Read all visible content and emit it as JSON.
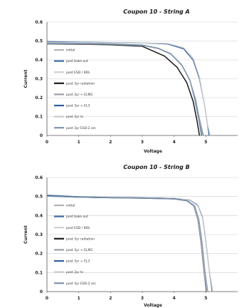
{
  "chart_data": [
    {
      "type": "line",
      "title": "Coupon 10 - String A",
      "xlabel": "Voltage",
      "ylabel": "Current",
      "xlim": [
        0,
        6
      ],
      "ylim": [
        0,
        0.6
      ],
      "xticks": [
        "0",
        "1",
        "2",
        "3",
        "4",
        "5"
      ],
      "yticks": [
        "0",
        "0.1",
        "0.2",
        "0.3",
        "0.4",
        "0.5",
        "0.6"
      ],
      "grid": true,
      "legend_position": "left",
      "series": [
        {
          "name": "initial",
          "color": "#b3b3b3",
          "x": [
            0,
            1,
            2,
            3,
            3.8,
            4.3,
            4.6,
            4.8,
            4.95,
            5.05,
            5.12
          ],
          "y": [
            0.495,
            0.493,
            0.492,
            0.49,
            0.485,
            0.46,
            0.4,
            0.3,
            0.17,
            0.06,
            0
          ]
        },
        {
          "name": "post bake out",
          "color": "#3e6fa8",
          "x": [
            0,
            1,
            2,
            3,
            3.8,
            4.3,
            4.6,
            4.8,
            4.95,
            5.05,
            5.1
          ],
          "y": [
            0.497,
            0.494,
            0.492,
            0.49,
            0.484,
            0.458,
            0.398,
            0.3,
            0.17,
            0.06,
            0
          ]
        },
        {
          "name": "post ESD / BOL",
          "color": "#d0d0d0",
          "x": [
            0,
            1,
            2,
            3,
            3.8,
            4.3,
            4.6,
            4.8,
            4.95,
            5.05,
            5.14
          ],
          "y": [
            0.493,
            0.492,
            0.491,
            0.49,
            0.487,
            0.465,
            0.41,
            0.31,
            0.17,
            0.06,
            0
          ]
        },
        {
          "name": "post 3yr radiation",
          "color": "#1a1a1a",
          "x": [
            0,
            1,
            2,
            3,
            3.3,
            3.7,
            4.1,
            4.4,
            4.6,
            4.72,
            4.8
          ],
          "y": [
            0.485,
            0.483,
            0.48,
            0.472,
            0.45,
            0.42,
            0.36,
            0.28,
            0.18,
            0.08,
            0
          ]
        },
        {
          "name": "post 3yr + ELM2",
          "color": "#9aa0a6",
          "x": [
            0,
            1,
            2,
            3,
            3.5,
            3.9,
            4.25,
            4.5,
            4.65,
            4.78,
            4.86
          ],
          "y": [
            0.487,
            0.486,
            0.484,
            0.477,
            0.46,
            0.43,
            0.37,
            0.29,
            0.19,
            0.08,
            0
          ]
        },
        {
          "name": "post 3yr + EL3",
          "color": "#2c5f99",
          "x": [
            0,
            1,
            2,
            3,
            3.5,
            3.9,
            4.25,
            4.5,
            4.66,
            4.79,
            4.88
          ],
          "y": [
            0.488,
            0.487,
            0.485,
            0.478,
            0.462,
            0.432,
            0.372,
            0.292,
            0.19,
            0.08,
            0
          ]
        },
        {
          "name": "post 3yr tc",
          "color": "#c8c8c8",
          "x": [
            0,
            1,
            2,
            3,
            3.5,
            3.9,
            4.25,
            4.5,
            4.67,
            4.8,
            4.9
          ],
          "y": [
            0.486,
            0.485,
            0.483,
            0.476,
            0.46,
            0.43,
            0.37,
            0.29,
            0.19,
            0.08,
            0
          ]
        },
        {
          "name": "post 3yr ESD-2 arc",
          "color": "#7f93ad",
          "x": [
            0,
            1,
            2,
            3,
            3.5,
            3.9,
            4.25,
            4.5,
            4.68,
            4.81,
            4.92
          ],
          "y": [
            0.487,
            0.486,
            0.484,
            0.477,
            0.461,
            0.431,
            0.371,
            0.291,
            0.19,
            0.08,
            0
          ]
        }
      ]
    },
    {
      "type": "line",
      "title": "Coupon 10 - String B",
      "xlabel": "Voltage",
      "ylabel": "Current",
      "xlim": [
        0,
        6
      ],
      "ylim": [
        0,
        0.6
      ],
      "xticks": [
        "0",
        "1",
        "2",
        "3",
        "4",
        "5"
      ],
      "yticks": [
        "0",
        "0.1",
        "0.2",
        "0.3",
        "0.4",
        "0.5",
        "0.6"
      ],
      "grid": true,
      "legend_position": "left",
      "series": [
        {
          "name": "initial",
          "color": "#b3b3b3",
          "x": [
            0,
            1,
            2,
            3,
            4,
            4.5,
            4.75,
            4.9,
            5.0,
            5.1,
            5.2
          ],
          "y": [
            0.505,
            0.498,
            0.495,
            0.493,
            0.49,
            0.482,
            0.455,
            0.39,
            0.27,
            0.12,
            0
          ]
        },
        {
          "name": "post bake out",
          "color": "#3e6fa8",
          "x": [
            0,
            1,
            2,
            3,
            4,
            4.5,
            4.75,
            4.9,
            5.0,
            5.1,
            5.2
          ],
          "y": [
            0.507,
            0.499,
            0.495,
            0.493,
            0.49,
            0.481,
            0.454,
            0.39,
            0.27,
            0.12,
            0
          ]
        },
        {
          "name": "post ESD / BOL",
          "color": "#d0d0d0",
          "x": [
            0,
            1,
            2,
            3,
            4,
            4.5,
            4.75,
            4.9,
            5.0,
            5.1,
            5.22
          ],
          "y": [
            0.503,
            0.497,
            0.494,
            0.492,
            0.49,
            0.483,
            0.457,
            0.395,
            0.275,
            0.12,
            0
          ]
        },
        {
          "name": "post 3yr radiation",
          "color": "#1a1a1a",
          "x": [
            0,
            1,
            2,
            3,
            4,
            4.4,
            4.62,
            4.75,
            4.85,
            4.94,
            5.02
          ],
          "y": [
            0.503,
            0.497,
            0.494,
            0.492,
            0.488,
            0.478,
            0.45,
            0.38,
            0.26,
            0.11,
            0
          ]
        },
        {
          "name": "post 3yr + ELM2",
          "color": "#9aa0a6",
          "x": [
            0,
            1,
            2,
            3,
            4,
            4.4,
            4.62,
            4.75,
            4.85,
            4.94,
            5.03
          ],
          "y": [
            0.502,
            0.496,
            0.493,
            0.491,
            0.487,
            0.477,
            0.45,
            0.38,
            0.26,
            0.11,
            0
          ]
        },
        {
          "name": "post 3yr + EL3",
          "color": "#2c5f99",
          "x": [
            0,
            1,
            2,
            3,
            4,
            4.42,
            4.64,
            4.77,
            4.87,
            4.96,
            5.05
          ],
          "y": [
            0.503,
            0.497,
            0.494,
            0.492,
            0.488,
            0.478,
            0.451,
            0.381,
            0.26,
            0.11,
            0
          ]
        },
        {
          "name": "post 3yr tc",
          "color": "#c8c8c8",
          "x": [
            0,
            1,
            2,
            3,
            4,
            4.42,
            4.64,
            4.77,
            4.87,
            4.96,
            5.04
          ],
          "y": [
            0.501,
            0.496,
            0.493,
            0.491,
            0.487,
            0.477,
            0.45,
            0.38,
            0.26,
            0.11,
            0
          ]
        },
        {
          "name": "post 3yr ESD-2 arc",
          "color": "#7f93ad",
          "x": [
            0,
            1,
            2,
            3,
            4,
            4.43,
            4.65,
            4.78,
            4.88,
            4.97,
            5.06
          ],
          "y": [
            0.502,
            0.496,
            0.493,
            0.491,
            0.487,
            0.477,
            0.45,
            0.38,
            0.26,
            0.11,
            0
          ]
        }
      ]
    }
  ]
}
